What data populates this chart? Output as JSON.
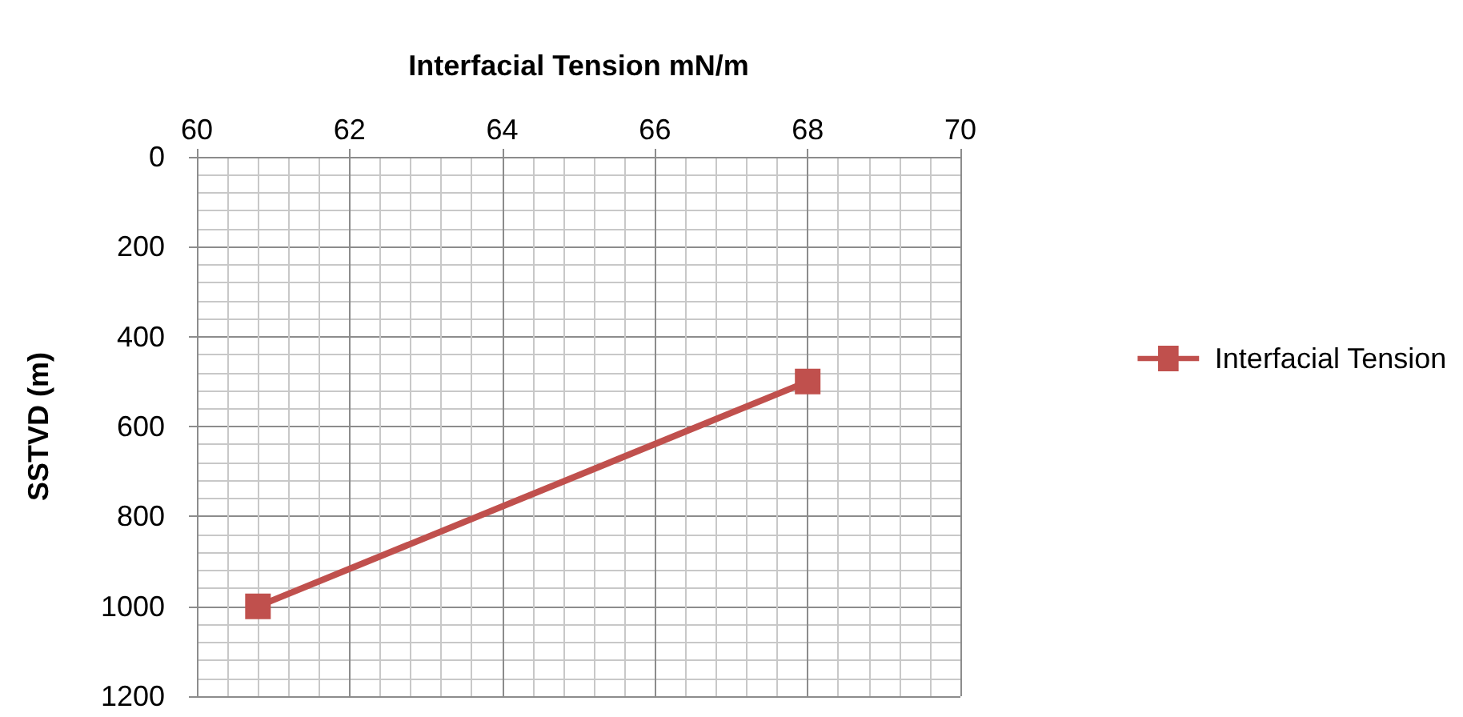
{
  "chart_data": {
    "type": "line",
    "xlabel": "Interfacial Tension mN/m",
    "ylabel": "SSTVD (m)",
    "x": [
      60.8,
      68
    ],
    "series": [
      {
        "name": "Interfacial Tension",
        "color": "#c0504d",
        "values": [
          1000,
          500
        ]
      }
    ],
    "xlim": [
      60,
      70
    ],
    "xticks": [
      60,
      62,
      64,
      66,
      68,
      70
    ],
    "ylim": [
      1200,
      0
    ],
    "yticks": [
      0,
      200,
      400,
      600,
      800,
      1000,
      1200
    ],
    "grid": true,
    "legend": "right",
    "marker": "square",
    "line_style": "solid"
  }
}
